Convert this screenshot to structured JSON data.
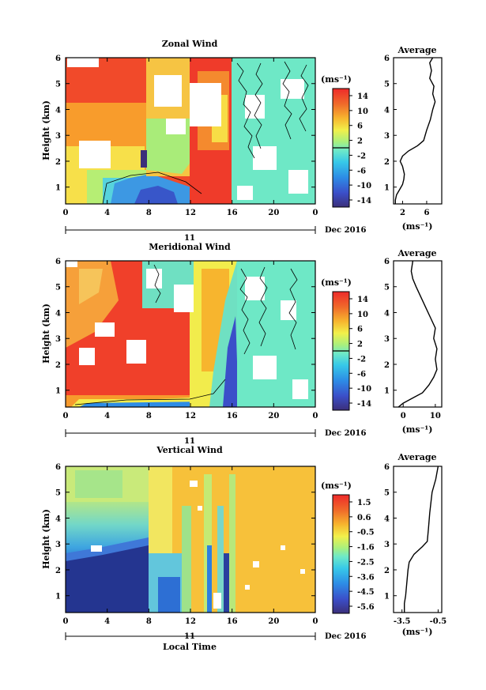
{
  "chart_data": [
    {
      "type": "heatmap",
      "title": "Zonal Wind",
      "ylabel": "Height (km)",
      "xlabel": "",
      "date_label": "Dec 2016",
      "day_label": "11",
      "xticks": [
        "0",
        "4",
        "8",
        "12",
        "16",
        "20",
        "0"
      ],
      "yticks": [
        "1",
        "2",
        "3",
        "4",
        "5",
        "6"
      ],
      "xlim": [
        0,
        24
      ],
      "ylim": [
        0.35,
        6.0
      ],
      "colorbar": {
        "unit": "(ms⁻¹)",
        "labels": [
          "14",
          "10",
          "6",
          "2",
          "-2",
          "-6",
          "-10",
          "-14"
        ],
        "range": [
          -16,
          16
        ]
      },
      "profile": {
        "title": "Average",
        "xlabel": "(ms⁻¹)",
        "xticks": [
          "2",
          "6"
        ],
        "xlim": [
          0.5,
          8.5
        ],
        "points": [
          [
            0.8,
            0.35
          ],
          [
            0.8,
            0.5
          ],
          [
            1.0,
            0.7
          ],
          [
            1.5,
            0.9
          ],
          [
            2.0,
            1.1
          ],
          [
            2.2,
            1.3
          ],
          [
            2.3,
            1.5
          ],
          [
            2.0,
            1.8
          ],
          [
            1.6,
            2.0
          ],
          [
            2.0,
            2.2
          ],
          [
            3.0,
            2.4
          ],
          [
            4.5,
            2.6
          ],
          [
            5.5,
            2.8
          ],
          [
            6.0,
            3.2
          ],
          [
            6.6,
            3.6
          ],
          [
            7.0,
            4.0
          ],
          [
            7.4,
            4.3
          ],
          [
            7.0,
            4.6
          ],
          [
            7.2,
            4.9
          ],
          [
            6.5,
            5.2
          ],
          [
            6.8,
            5.5
          ],
          [
            6.5,
            5.8
          ],
          [
            7.0,
            6.0
          ]
        ]
      }
    },
    {
      "type": "heatmap",
      "title": "Meridional Wind",
      "ylabel": "Height (km)",
      "xlabel": "",
      "date_label": "Dec 2016",
      "day_label": "11",
      "xticks": [
        "0",
        "4",
        "8",
        "12",
        "16",
        "20",
        "0"
      ],
      "yticks": [
        "1",
        "2",
        "3",
        "4",
        "5",
        "6"
      ],
      "xlim": [
        0,
        24
      ],
      "ylim": [
        0.35,
        6.0
      ],
      "colorbar": {
        "unit": "(ms⁻¹)",
        "labels": [
          "14",
          "10",
          "6",
          "2",
          "-2",
          "-6",
          "-10",
          "-14"
        ],
        "range": [
          -16,
          16
        ]
      },
      "profile": {
        "title": "Average",
        "xlabel": "(ms⁻¹)",
        "xticks": [
          "0",
          "10"
        ],
        "xlim": [
          -3,
          12
        ],
        "points": [
          [
            -1.5,
            0.35
          ],
          [
            0,
            0.5
          ],
          [
            3,
            0.7
          ],
          [
            6,
            0.9
          ],
          [
            8,
            1.2
          ],
          [
            9.5,
            1.5
          ],
          [
            10.5,
            1.8
          ],
          [
            10,
            2.2
          ],
          [
            10.5,
            2.6
          ],
          [
            9.5,
            3.0
          ],
          [
            10,
            3.4
          ],
          [
            8.5,
            3.8
          ],
          [
            7,
            4.2
          ],
          [
            5.5,
            4.6
          ],
          [
            4,
            5.0
          ],
          [
            3,
            5.3
          ],
          [
            2.5,
            5.6
          ],
          [
            3,
            6.0
          ]
        ]
      }
    },
    {
      "type": "heatmap",
      "title": "Vertical Wind",
      "ylabel": "Height (km)",
      "xlabel": "Local Time",
      "date_label": "Dec 2016",
      "day_label": "11",
      "xticks": [
        "0",
        "4",
        "8",
        "12",
        "16",
        "20",
        "0"
      ],
      "yticks": [
        "1",
        "2",
        "3",
        "4",
        "5",
        "6"
      ],
      "xlim": [
        0,
        24
      ],
      "ylim": [
        0.35,
        6.0
      ],
      "colorbar": {
        "unit": "(ms⁻¹)",
        "labels": [
          "1.5",
          "0.6",
          "-0.5",
          "-1.6",
          "-2.5",
          "-3.6",
          "-4.5",
          "-5.6"
        ],
        "range": [
          -6,
          2
        ]
      },
      "profile": {
        "title": "Average",
        "xlabel": "(ms⁻¹)",
        "xticks": [
          "-3.5",
          "-0.5"
        ],
        "xlim": [
          -4.2,
          -0.2
        ],
        "points": [
          [
            -3.3,
            0.35
          ],
          [
            -3.3,
            0.7
          ],
          [
            -3.2,
            1.0
          ],
          [
            -3.1,
            1.5
          ],
          [
            -3.0,
            2.0
          ],
          [
            -2.9,
            2.3
          ],
          [
            -2.5,
            2.6
          ],
          [
            -1.8,
            2.9
          ],
          [
            -1.4,
            3.1
          ],
          [
            -1.3,
            3.6
          ],
          [
            -1.2,
            4.2
          ],
          [
            -1.0,
            5.0
          ],
          [
            -0.7,
            5.5
          ],
          [
            -0.5,
            6.0
          ]
        ]
      }
    }
  ]
}
